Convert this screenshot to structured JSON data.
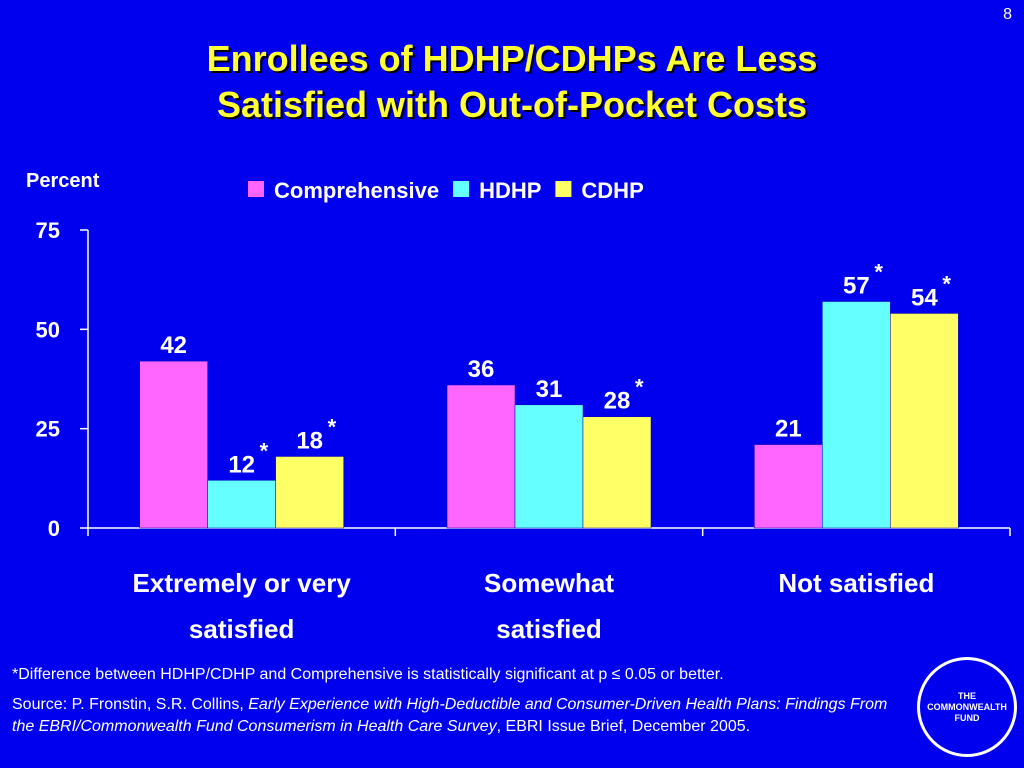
{
  "slide_number": "8",
  "title_line1": "Enrollees of HDHP/CDHPs Are Less",
  "title_line2": "Satisfied with Out-of-Pocket Costs",
  "colors": {
    "background": "#0000ee",
    "title": "#ffff33",
    "comprehensive": "#ff66ff",
    "hdhp": "#66ffff",
    "cdhp": "#ffff66"
  },
  "chart_data": {
    "type": "bar",
    "ylabel": "Percent",
    "ylim": [
      0,
      75
    ],
    "yticks": [
      0,
      25,
      50,
      75
    ],
    "legend_position": "top",
    "categories": [
      [
        "Extremely or very",
        "satisfied"
      ],
      [
        "Somewhat",
        "satisfied"
      ],
      [
        "Not satisfied"
      ]
    ],
    "series": [
      {
        "name": "Comprehensive",
        "color": "#ff66ff",
        "values": [
          42,
          36,
          21
        ],
        "significant": [
          false,
          false,
          false
        ]
      },
      {
        "name": "HDHP",
        "color": "#66ffff",
        "values": [
          12,
          31,
          57
        ],
        "significant": [
          true,
          false,
          true
        ]
      },
      {
        "name": "CDHP",
        "color": "#ffff66",
        "values": [
          18,
          28,
          54
        ],
        "significant": [
          true,
          true,
          true
        ]
      }
    ],
    "significance_marker": "*"
  },
  "footnote": "*Difference between HDHP/CDHP and Comprehensive is statistically significant at p ≤ 0.05 or better.",
  "source": {
    "prefix": "Source: P. Fronstin, S.R. Collins, ",
    "italic": "Early Experience with High-Deductible and Consumer-Driven Health Plans: Findings From the EBRI/Commonwealth Fund Consumerism in Health Care Survey",
    "suffix": ", EBRI Issue Brief, December 2005."
  },
  "logo": {
    "line1": "THE",
    "line2": "COMMONWEALTH",
    "line3": "FUND"
  }
}
